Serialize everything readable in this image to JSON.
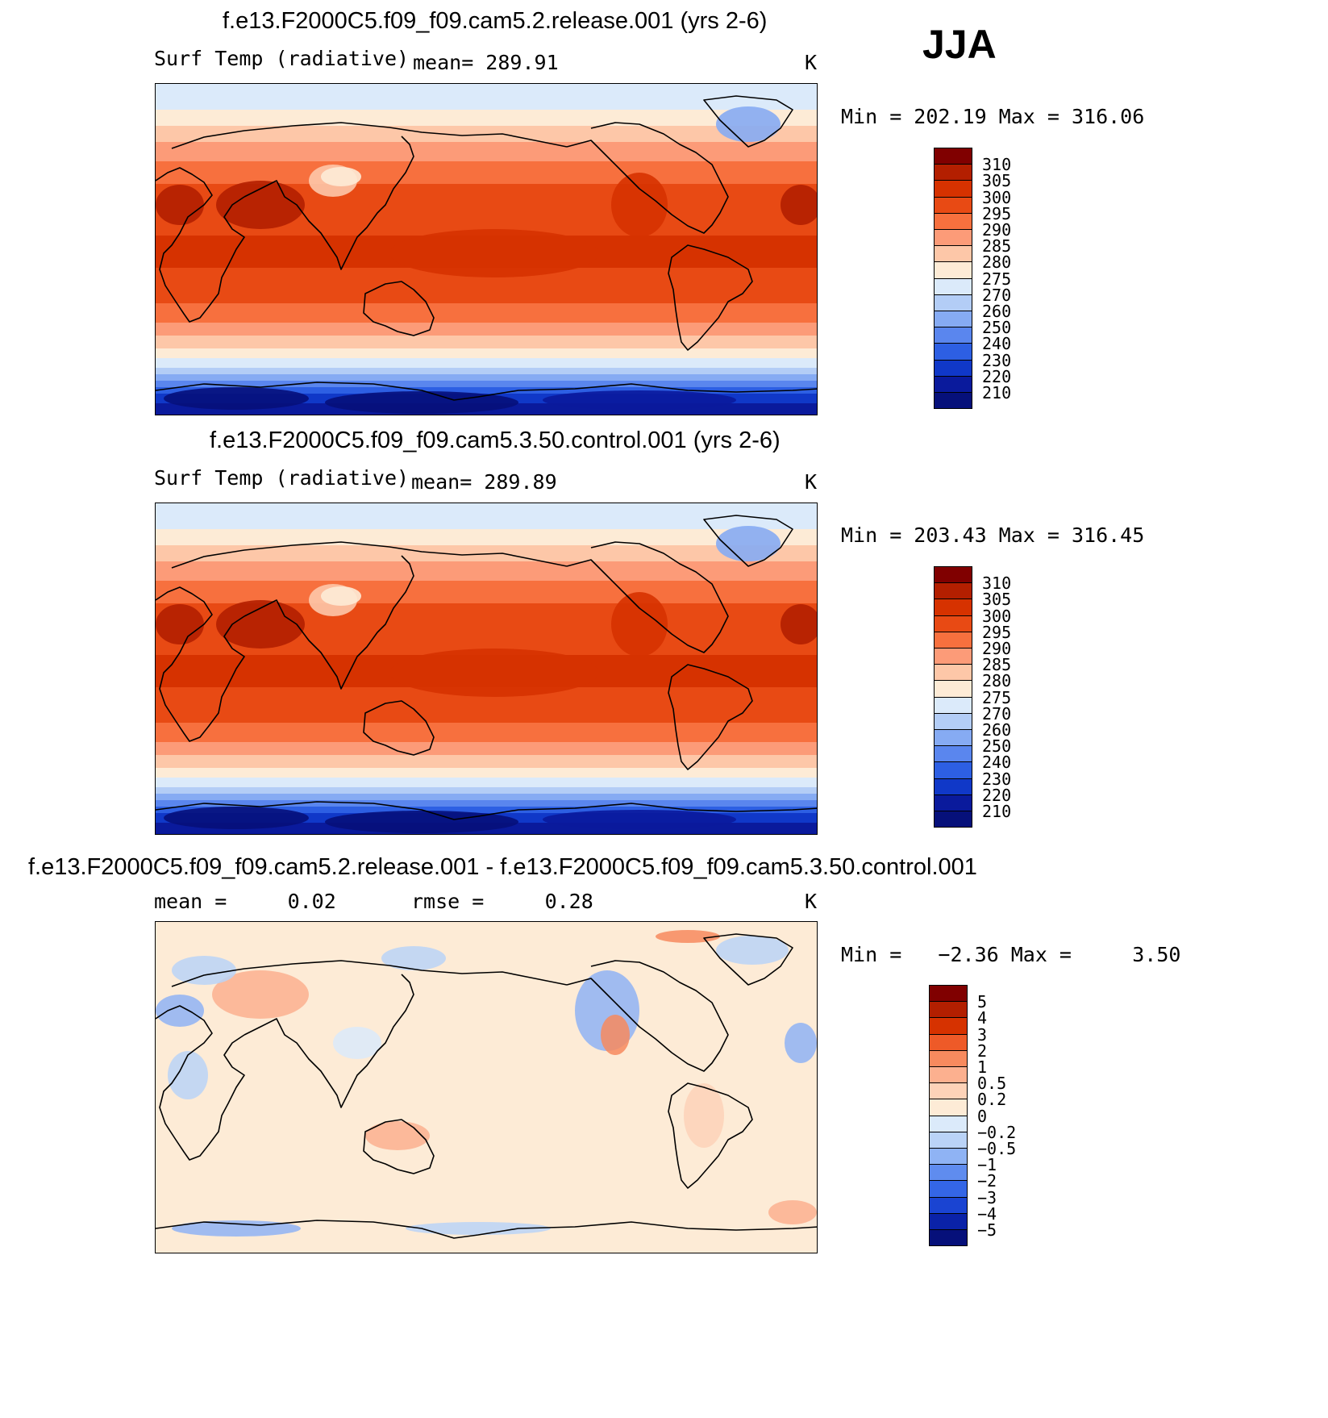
{
  "season": "JJA",
  "panels": [
    {
      "title": "f.e13.F2000C5.f09_f09.cam5.2.release.001 (yrs 2-6)",
      "left_label": "Surf Temp (radiative)",
      "mid_label": "mean= 289.91",
      "units": "K",
      "minmax": "Min = 202.19 Max = 316.06",
      "type": "field",
      "levels": [
        "310",
        "305",
        "300",
        "295",
        "290",
        "285",
        "280",
        "275",
        "270",
        "260",
        "250",
        "240",
        "230",
        "220",
        "210"
      ],
      "colors": [
        "#800000",
        "#b31f00",
        "#d63200",
        "#e84a14",
        "#f7703e",
        "#fc9b78",
        "#fdc7a8",
        "#fdebd6",
        "#dbeafa",
        "#b3cdf6",
        "#86abf3",
        "#5a86ee",
        "#2d5fe3",
        "#1038c8",
        "#0a1a9c",
        "#06107a"
      ]
    },
    {
      "title": "f.e13.F2000C5.f09_f09.cam5.3.50.control.001 (yrs 2-6)",
      "left_label": "Surf Temp (radiative)",
      "mid_label": "mean= 289.89",
      "units": "K",
      "minmax": "Min = 203.43 Max = 316.45",
      "type": "field",
      "levels": [
        "310",
        "305",
        "300",
        "295",
        "290",
        "285",
        "280",
        "275",
        "270",
        "260",
        "250",
        "240",
        "230",
        "220",
        "210"
      ],
      "colors": [
        "#800000",
        "#b31f00",
        "#d63200",
        "#e84a14",
        "#f7703e",
        "#fc9b78",
        "#fdc7a8",
        "#fdebd6",
        "#dbeafa",
        "#b3cdf6",
        "#86abf3",
        "#5a86ee",
        "#2d5fe3",
        "#1038c8",
        "#0a1a9c",
        "#06107a"
      ]
    },
    {
      "title": "f.e13.F2000C5.f09_f09.cam5.2.release.001 - f.e13.F2000C5.f09_f09.cam5.3.50.control.001",
      "left_label": "mean =     0.02",
      "mid_label": "rmse =     0.28",
      "units": "K",
      "minmax": "Min =   −2.36 Max =     3.50",
      "type": "diff",
      "levels": [
        "5",
        "4",
        "3",
        "2",
        "1",
        "0.5",
        "0.2",
        "0",
        "−0.2",
        "−0.5",
        "−1",
        "−2",
        "−3",
        "−4",
        "−5"
      ],
      "colors": [
        "#800000",
        "#b31f00",
        "#d63200",
        "#ee5a28",
        "#f78a5e",
        "#fcb08f",
        "#fdd2b8",
        "#fdebd6",
        "#dbeafa",
        "#bad3f7",
        "#8fb3f4",
        "#5f8cef",
        "#3466e6",
        "#1a44d2",
        "#0a22a8",
        "#06107a"
      ]
    }
  ]
}
